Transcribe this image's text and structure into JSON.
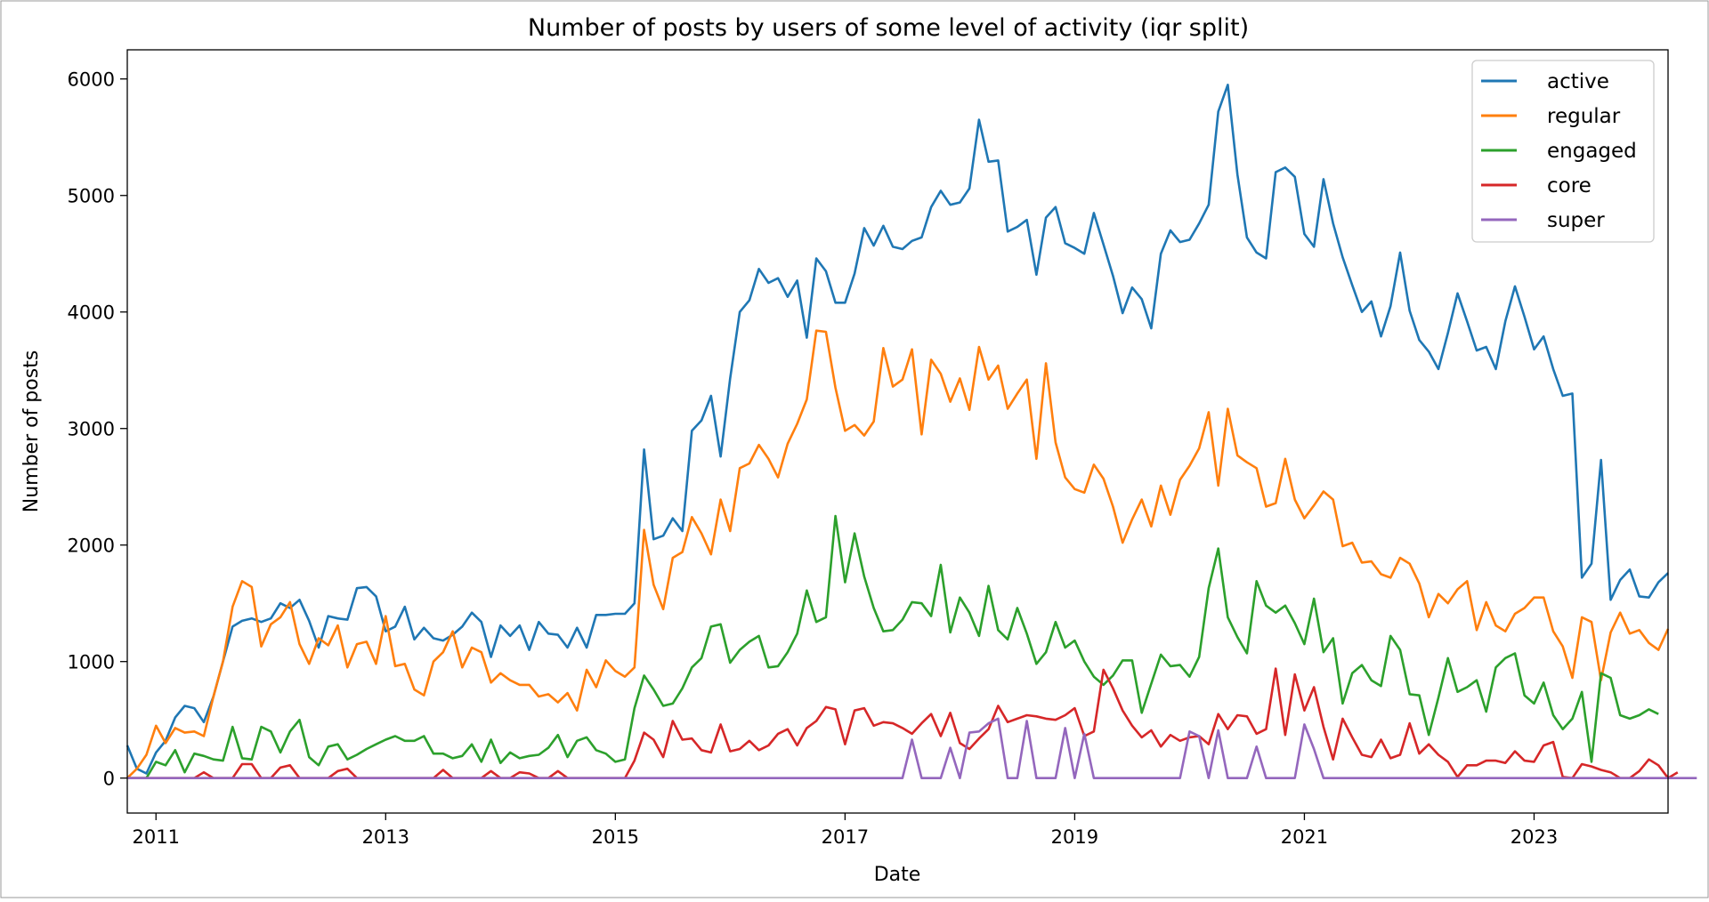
{
  "chart_data": {
    "type": "line",
    "title": "Number of posts by users of some level of activity (iqr split)",
    "xlabel": "Date",
    "ylabel": "Number of posts",
    "x_start": "2010-10",
    "x_end": "2024-03",
    "x_frequency": "monthly",
    "xlim": [
      "2010-10",
      "2024-03"
    ],
    "xticks": [
      "2011",
      "2013",
      "2015",
      "2017",
      "2019",
      "2021",
      "2023"
    ],
    "ylim": [
      -300,
      6250
    ],
    "yticks": [
      0,
      1000,
      2000,
      3000,
      4000,
      5000,
      6000
    ],
    "grid": false,
    "legend_position": "upper right",
    "series": [
      {
        "name": "active",
        "color": "#1f77b4",
        "values": [
          280,
          80,
          40,
          220,
          320,
          520,
          620,
          600,
          480,
          700,
          1000,
          1300,
          1350,
          1370,
          1340,
          1370,
          1500,
          1460,
          1530,
          1350,
          1120,
          1390,
          1370,
          1360,
          1630,
          1640,
          1560,
          1260,
          1300,
          1470,
          1190,
          1290,
          1200,
          1180,
          1230,
          1300,
          1420,
          1340,
          1040,
          1310,
          1220,
          1310,
          1100,
          1340,
          1240,
          1230,
          1120,
          1290,
          1120,
          1400,
          1400,
          1410,
          1410,
          1500,
          2820,
          2050,
          2080,
          2230,
          2120,
          2980,
          3070,
          3280,
          2760,
          3430,
          4000,
          4100,
          4370,
          4250,
          4290,
          4130,
          4270,
          3780,
          4460,
          4350,
          4080,
          4080,
          4330,
          4720,
          4570,
          4740,
          4560,
          4540,
          4610,
          4640,
          4900,
          5040,
          4920,
          4940,
          5060,
          5650,
          5290,
          5300,
          4690,
          4730,
          4790,
          4320,
          4810,
          4900,
          4590,
          4550,
          4500,
          4850,
          4580,
          4310,
          3990,
          4210,
          4110,
          3860,
          4500,
          4700,
          4600,
          4620,
          4760,
          4920,
          5720,
          5950,
          5180,
          4640,
          4510,
          4460,
          5200,
          5240,
          5160,
          4670,
          4560,
          5140,
          4760,
          4470,
          4230,
          4000,
          4090,
          3790,
          4050,
          4510,
          4010,
          3760,
          3660,
          3510,
          3820,
          4160,
          3920,
          3670,
          3700,
          3510,
          3920,
          4220,
          3960,
          3680,
          3790,
          3510,
          3280,
          3300,
          1720,
          1840,
          2730,
          1530,
          1700,
          1790,
          1560,
          1550,
          1680,
          1760
        ]
      },
      {
        "name": "regular",
        "color": "#ff7f0e",
        "values": [
          0,
          80,
          200,
          450,
          300,
          430,
          390,
          400,
          360,
          700,
          1000,
          1470,
          1690,
          1640,
          1130,
          1320,
          1380,
          1510,
          1150,
          980,
          1200,
          1140,
          1310,
          950,
          1150,
          1170,
          980,
          1390,
          960,
          980,
          760,
          710,
          1000,
          1080,
          1260,
          950,
          1120,
          1080,
          820,
          900,
          840,
          800,
          800,
          700,
          720,
          650,
          730,
          580,
          930,
          780,
          1010,
          920,
          870,
          950,
          2130,
          1660,
          1450,
          1890,
          1940,
          2240,
          2100,
          1920,
          2390,
          2120,
          2660,
          2700,
          2860,
          2740,
          2580,
          2870,
          3040,
          3250,
          3840,
          3830,
          3350,
          2980,
          3030,
          2940,
          3060,
          3690,
          3360,
          3420,
          3680,
          2950,
          3590,
          3470,
          3230,
          3430,
          3160,
          3700,
          3420,
          3540,
          3170,
          3300,
          3420,
          2740,
          3560,
          2880,
          2580,
          2480,
          2450,
          2690,
          2570,
          2330,
          2020,
          2220,
          2390,
          2160,
          2510,
          2260,
          2560,
          2680,
          2830,
          3140,
          2510,
          3170,
          2770,
          2710,
          2660,
          2330,
          2360,
          2740,
          2390,
          2230,
          2340,
          2460,
          2390,
          1990,
          2020,
          1850,
          1860,
          1750,
          1720,
          1890,
          1840,
          1670,
          1380,
          1580,
          1500,
          1620,
          1690,
          1270,
          1510,
          1310,
          1260,
          1410,
          1460,
          1550,
          1550,
          1260,
          1130,
          860,
          1380,
          1340,
          840,
          1250,
          1420,
          1240,
          1270,
          1160,
          1100,
          1280
        ]
      },
      {
        "name": "engaged",
        "color": "#2ca02c",
        "values": [
          0,
          0,
          0,
          140,
          110,
          240,
          50,
          210,
          190,
          160,
          150,
          440,
          170,
          160,
          440,
          400,
          220,
          400,
          500,
          180,
          110,
          270,
          290,
          160,
          200,
          250,
          290,
          330,
          360,
          320,
          320,
          360,
          210,
          210,
          170,
          190,
          290,
          140,
          330,
          130,
          220,
          170,
          190,
          200,
          260,
          370,
          180,
          320,
          350,
          240,
          210,
          140,
          160,
          600,
          880,
          760,
          620,
          640,
          770,
          950,
          1030,
          1300,
          1320,
          990,
          1100,
          1170,
          1220,
          950,
          960,
          1080,
          1240,
          1610,
          1340,
          1380,
          2250,
          1680,
          2100,
          1730,
          1460,
          1260,
          1270,
          1360,
          1510,
          1500,
          1390,
          1830,
          1250,
          1550,
          1420,
          1220,
          1650,
          1270,
          1190,
          1460,
          1240,
          980,
          1080,
          1340,
          1120,
          1180,
          1000,
          870,
          800,
          880,
          1010,
          1010,
          560,
          810,
          1060,
          960,
          970,
          870,
          1040,
          1630,
          1970,
          1380,
          1210,
          1070,
          1690,
          1480,
          1420,
          1480,
          1330,
          1150,
          1540,
          1080,
          1200,
          640,
          900,
          970,
          840,
          790,
          1220,
          1100,
          720,
          710,
          370,
          690,
          1030,
          740,
          780,
          840,
          570,
          950,
          1030,
          1070,
          710,
          640,
          820,
          540,
          420,
          510,
          740,
          140,
          900,
          860,
          540,
          510,
          540,
          590,
          550
        ]
      },
      {
        "name": "core",
        "color": "#d62728",
        "values": [
          0,
          0,
          0,
          0,
          0,
          0,
          0,
          0,
          50,
          0,
          0,
          0,
          120,
          120,
          0,
          0,
          90,
          110,
          0,
          0,
          0,
          0,
          60,
          80,
          0,
          0,
          0,
          0,
          0,
          0,
          0,
          0,
          0,
          70,
          0,
          0,
          0,
          0,
          60,
          0,
          0,
          50,
          40,
          0,
          0,
          60,
          0,
          0,
          0,
          0,
          0,
          0,
          0,
          150,
          390,
          330,
          180,
          490,
          330,
          340,
          240,
          220,
          460,
          230,
          250,
          320,
          240,
          280,
          380,
          420,
          280,
          430,
          490,
          610,
          590,
          290,
          580,
          600,
          450,
          480,
          470,
          430,
          380,
          470,
          550,
          360,
          560,
          300,
          250,
          340,
          420,
          620,
          480,
          510,
          540,
          530,
          510,
          500,
          540,
          600,
          360,
          400,
          930,
          770,
          580,
          450,
          350,
          410,
          270,
          370,
          320,
          350,
          360,
          290,
          550,
          420,
          540,
          530,
          380,
          420,
          940,
          370,
          890,
          580,
          780,
          440,
          160,
          510,
          350,
          200,
          180,
          330,
          170,
          200,
          470,
          210,
          290,
          200,
          140,
          10,
          110,
          110,
          150,
          150,
          130,
          230,
          150,
          140,
          280,
          310,
          10,
          0,
          120,
          100,
          70,
          50,
          0,
          0,
          60,
          160,
          110,
          0,
          50
        ]
      },
      {
        "name": "super",
        "color": "#9467bd",
        "values": [
          0,
          0,
          0,
          0,
          0,
          0,
          0,
          0,
          0,
          0,
          0,
          0,
          0,
          0,
          0,
          0,
          0,
          0,
          0,
          0,
          0,
          0,
          0,
          0,
          0,
          0,
          0,
          0,
          0,
          0,
          0,
          0,
          0,
          0,
          0,
          0,
          0,
          0,
          0,
          0,
          0,
          0,
          0,
          0,
          0,
          0,
          0,
          0,
          0,
          0,
          0,
          0,
          0,
          0,
          0,
          0,
          0,
          0,
          0,
          0,
          0,
          0,
          0,
          0,
          0,
          0,
          0,
          0,
          0,
          0,
          0,
          0,
          0,
          0,
          0,
          0,
          0,
          0,
          0,
          0,
          0,
          0,
          330,
          0,
          0,
          0,
          260,
          0,
          390,
          400,
          470,
          510,
          0,
          0,
          490,
          0,
          0,
          0,
          430,
          0,
          380,
          0,
          0,
          0,
          0,
          0,
          0,
          0,
          0,
          0,
          0,
          400,
          360,
          0,
          410,
          0,
          0,
          0,
          270,
          0,
          0,
          0,
          0,
          460,
          250,
          0,
          0,
          0,
          0,
          0,
          0,
          0,
          0,
          0,
          0,
          0,
          0,
          0,
          0,
          0,
          0,
          0,
          0,
          0,
          0,
          0,
          0,
          0,
          0,
          0,
          0,
          0,
          0,
          0,
          0,
          0,
          0,
          0,
          0,
          0,
          0,
          0,
          0,
          0,
          0
        ]
      }
    ]
  }
}
